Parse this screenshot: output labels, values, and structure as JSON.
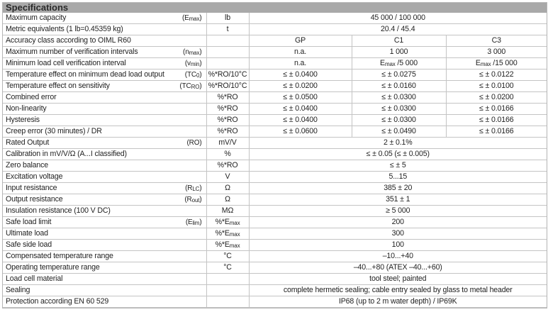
{
  "title": "Specifications",
  "rows": [
    {
      "label": "Maximum capacity",
      "sym": [
        {
          "t": "(E"
        },
        {
          "t": "max",
          "sub": true
        },
        {
          "t": ")"
        }
      ],
      "unit": [
        {
          "t": "lb"
        }
      ],
      "values": [
        [
          {
            "t": "45 000 / 100 000"
          }
        ]
      ]
    },
    {
      "label": "Metric equivalents (1 lb=0.45359 kg)",
      "sym": [],
      "unit": [
        {
          "t": "t"
        }
      ],
      "values": [
        [
          {
            "t": "20.4 / 45.4"
          }
        ]
      ]
    },
    {
      "label": "Accuracy class according to OIML R60",
      "sym": [],
      "unit": [],
      "values": [
        [
          {
            "t": "GP"
          }
        ],
        [
          {
            "t": "C1"
          }
        ],
        [
          {
            "t": "C3"
          }
        ]
      ]
    },
    {
      "label": "Maximum number of verification intervals",
      "sym": [
        {
          "t": "(n"
        },
        {
          "t": "max",
          "sub": true
        },
        {
          "t": ")"
        }
      ],
      "unit": [],
      "values": [
        [
          {
            "t": "n.a."
          }
        ],
        [
          {
            "t": "1 000"
          }
        ],
        [
          {
            "t": "3 000"
          }
        ]
      ]
    },
    {
      "label": "Minimum load cell verification interval",
      "sym": [
        {
          "t": "(v"
        },
        {
          "t": "min",
          "sub": true
        },
        {
          "t": ")"
        }
      ],
      "unit": [],
      "values": [
        [
          {
            "t": "n.a."
          }
        ],
        [
          {
            "t": "E"
          },
          {
            "t": "max",
            "sub": true
          },
          {
            "t": " /5 000"
          }
        ],
        [
          {
            "t": "E"
          },
          {
            "t": "max",
            "sub": true
          },
          {
            "t": " /15 000"
          }
        ]
      ]
    },
    {
      "label": "Temperature effect on minimum dead load output",
      "sym": [
        {
          "t": "(TC"
        },
        {
          "t": "0",
          "sub": true
        },
        {
          "t": ")"
        }
      ],
      "unit": [
        {
          "t": "%*RO/10°C"
        }
      ],
      "values": [
        [
          {
            "t": "≤ ± 0.0400"
          }
        ],
        [
          {
            "t": "≤ ± 0.0275"
          }
        ],
        [
          {
            "t": "≤ ± 0.0122"
          }
        ]
      ]
    },
    {
      "label": "Temperature effect on sensitivity",
      "sym": [
        {
          "t": "(TC"
        },
        {
          "t": "RO",
          "sub": true
        },
        {
          "t": ")"
        }
      ],
      "unit": [
        {
          "t": "%*RO/10°C"
        }
      ],
      "values": [
        [
          {
            "t": "≤ ± 0.0200"
          }
        ],
        [
          {
            "t": "≤ ± 0.0160"
          }
        ],
        [
          {
            "t": "≤ ± 0.0100"
          }
        ]
      ]
    },
    {
      "label": "Combined error",
      "sym": [],
      "unit": [
        {
          "t": "%*RO"
        }
      ],
      "values": [
        [
          {
            "t": "≤ ± 0.0500"
          }
        ],
        [
          {
            "t": "≤ ± 0.0300"
          }
        ],
        [
          {
            "t": "≤ ± 0.0200"
          }
        ]
      ]
    },
    {
      "label": "Non-linearity",
      "sym": [],
      "unit": [
        {
          "t": "%*RO"
        }
      ],
      "values": [
        [
          {
            "t": "≤ ± 0.0400"
          }
        ],
        [
          {
            "t": "≤ ± 0.0300"
          }
        ],
        [
          {
            "t": "≤ ± 0.0166"
          }
        ]
      ]
    },
    {
      "label": "Hysteresis",
      "sym": [],
      "unit": [
        {
          "t": "%*RO"
        }
      ],
      "values": [
        [
          {
            "t": "≤ ± 0.0400"
          }
        ],
        [
          {
            "t": "≤ ± 0.0300"
          }
        ],
        [
          {
            "t": "≤ ± 0.0166"
          }
        ]
      ]
    },
    {
      "label": "Creep error (30 minutes) / DR",
      "sym": [],
      "unit": [
        {
          "t": "%*RO"
        }
      ],
      "values": [
        [
          {
            "t": "≤ ± 0.0600"
          }
        ],
        [
          {
            "t": "≤ ± 0.0490"
          }
        ],
        [
          {
            "t": "≤ ± 0.0166"
          }
        ]
      ]
    },
    {
      "label": "Rated Output",
      "sym": [
        {
          "t": "(RO)"
        }
      ],
      "unit": [
        {
          "t": "mV/V"
        }
      ],
      "values": [
        [
          {
            "t": "2 ± 0.1%"
          }
        ]
      ]
    },
    {
      "label": "Calibration in mV/V/Ω (A...I classified)",
      "sym": [],
      "unit": [
        {
          "t": "%"
        }
      ],
      "values": [
        [
          {
            "t": "≤ ± 0.05 (≤ ± 0.005)"
          }
        ]
      ]
    },
    {
      "label": "Zero balance",
      "sym": [],
      "unit": [
        {
          "t": "%*RO"
        }
      ],
      "values": [
        [
          {
            "t": "≤ ± 5"
          }
        ]
      ]
    },
    {
      "label": "Excitation voltage",
      "sym": [],
      "unit": [
        {
          "t": "V"
        }
      ],
      "values": [
        [
          {
            "t": "5...15"
          }
        ]
      ]
    },
    {
      "label": "Input resistance",
      "sym": [
        {
          "t": "(R"
        },
        {
          "t": "LC",
          "sub": true
        },
        {
          "t": ")"
        }
      ],
      "unit": [
        {
          "t": "Ω"
        }
      ],
      "values": [
        [
          {
            "t": "385 ± 20"
          }
        ]
      ]
    },
    {
      "label": "Output resistance",
      "sym": [
        {
          "t": "(R"
        },
        {
          "t": "out",
          "sub": true
        },
        {
          "t": ")"
        }
      ],
      "unit": [
        {
          "t": "Ω"
        }
      ],
      "values": [
        [
          {
            "t": "351 ± 1"
          }
        ]
      ]
    },
    {
      "label": "Insulation resistance (100 V DC)",
      "sym": [],
      "unit": [
        {
          "t": "MΩ"
        }
      ],
      "values": [
        [
          {
            "t": "≥ 5 000"
          }
        ]
      ]
    },
    {
      "label": "Safe load limit",
      "sym": [
        {
          "t": "(E"
        },
        {
          "t": "lim",
          "sub": true
        },
        {
          "t": ")"
        }
      ],
      "unit": [
        {
          "t": "%*E"
        },
        {
          "t": "max",
          "sub": true
        }
      ],
      "values": [
        [
          {
            "t": "200"
          }
        ]
      ]
    },
    {
      "label": "Ultimate load",
      "sym": [],
      "unit": [
        {
          "t": "%*E"
        },
        {
          "t": "max",
          "sub": true
        }
      ],
      "values": [
        [
          {
            "t": "300"
          }
        ]
      ]
    },
    {
      "label": "Safe side load",
      "sym": [],
      "unit": [
        {
          "t": "%*E"
        },
        {
          "t": "max",
          "sub": true
        }
      ],
      "values": [
        [
          {
            "t": "100"
          }
        ]
      ]
    },
    {
      "label": "Compensated temperature range",
      "sym": [],
      "unit": [
        {
          "t": "°C"
        }
      ],
      "values": [
        [
          {
            "t": "–10...+40"
          }
        ]
      ]
    },
    {
      "label": "Operating temperature range",
      "sym": [],
      "unit": [
        {
          "t": "°C"
        }
      ],
      "values": [
        [
          {
            "t": "–40...+80 (ATEX –40...+60)"
          }
        ]
      ]
    },
    {
      "label": "Load cell material",
      "sym": [],
      "unit": [],
      "values": [
        [
          {
            "t": "tool steel; painted"
          }
        ]
      ]
    },
    {
      "label": "Sealing",
      "sym": [],
      "unit": [],
      "values": [
        [
          {
            "t": "complete hermetic sealing; cable entry sealed by glass to metal header"
          }
        ]
      ]
    },
    {
      "label": "Protection according EN 60 529",
      "sym": [],
      "unit": [],
      "values": [
        [
          {
            "t": "IP68 (up to 2 m water depth) / IP69K"
          }
        ]
      ]
    }
  ]
}
